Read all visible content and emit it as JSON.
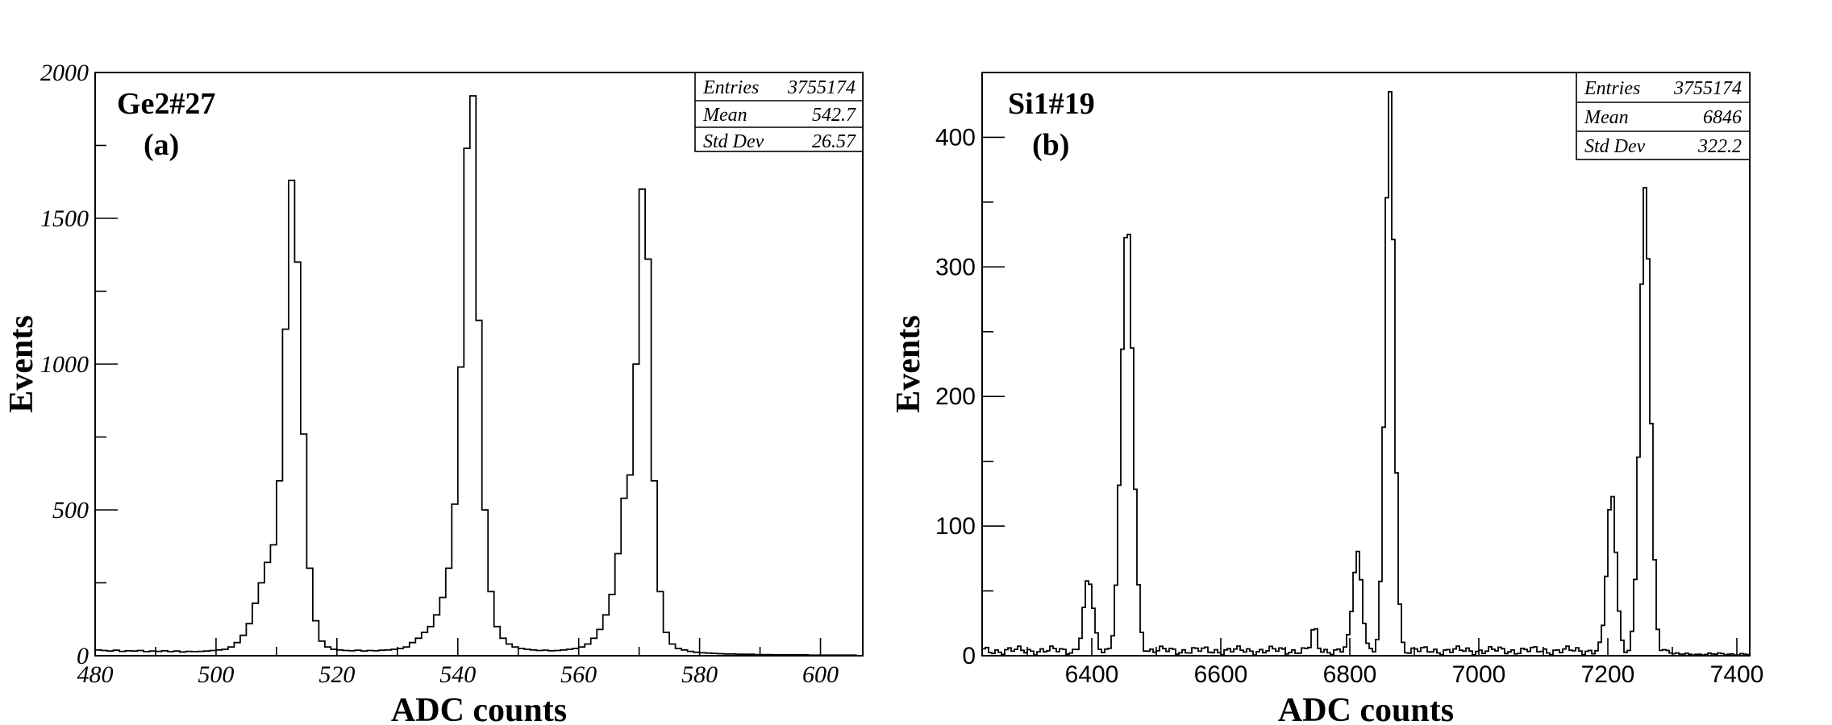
{
  "chart_data": [
    {
      "type": "histogram",
      "panel_title": "Ge2#27",
      "panel_label": "(a)",
      "xlabel": "ADC counts",
      "ylabel": "Events",
      "xlim": [
        480,
        607
      ],
      "ylim": [
        0,
        2000
      ],
      "xticks": [
        480,
        500,
        520,
        540,
        560,
        580,
        600
      ],
      "xtick_labels": [
        "480",
        "500",
        "520",
        "540",
        "560",
        "580",
        "600"
      ],
      "yticks": [
        0,
        500,
        1000,
        1500,
        2000
      ],
      "ytick_labels": [
        "0",
        "500",
        "1000",
        "1500",
        "2000"
      ],
      "stats": [
        {
          "label": "Entries",
          "value": "3755174"
        },
        {
          "label": "Mean",
          "value": "542.7"
        },
        {
          "label": "Std Dev",
          "value": "26.57"
        }
      ],
      "bin_edges": [
        480,
        607
      ],
      "bin_width": 1,
      "counts": [
        20,
        18,
        16,
        19,
        15,
        17,
        16,
        18,
        14,
        16,
        15,
        17,
        14,
        16,
        13,
        15,
        14,
        15,
        16,
        18,
        20,
        22,
        30,
        45,
        70,
        110,
        180,
        250,
        320,
        380,
        600,
        1120,
        1630,
        1350,
        760,
        300,
        120,
        50,
        30,
        22,
        20,
        18,
        17,
        19,
        16,
        18,
        17,
        19,
        20,
        22,
        25,
        30,
        45,
        60,
        80,
        100,
        140,
        200,
        300,
        520,
        990,
        1740,
        1920,
        1150,
        500,
        220,
        100,
        60,
        40,
        30,
        25,
        22,
        20,
        18,
        19,
        17,
        18,
        20,
        22,
        25,
        30,
        40,
        60,
        90,
        140,
        210,
        350,
        540,
        620,
        1000,
        1600,
        1360,
        600,
        220,
        80,
        40,
        25,
        20,
        15,
        12,
        10,
        9,
        8,
        7,
        6,
        6,
        5,
        5,
        5,
        4,
        4,
        4,
        3,
        3,
        3,
        3,
        3,
        3,
        2,
        2,
        2,
        2,
        2,
        2,
        2,
        2
      ]
    },
    {
      "type": "histogram",
      "panel_title": "Si1#19",
      "panel_label": "(b)",
      "xlabel": "ADC counts",
      "ylabel": "Events",
      "xlim": [
        6230,
        7420
      ],
      "ylim": [
        0,
        450
      ],
      "xticks": [
        6400,
        6600,
        6800,
        7000,
        7200,
        7400
      ],
      "xtick_labels": [
        "6400",
        "6600",
        "6800",
        "7000",
        "7200",
        "7400"
      ],
      "yticks": [
        0,
        100,
        200,
        300,
        400
      ],
      "ytick_labels": [
        "0",
        "100",
        "200",
        "300",
        "400"
      ],
      "stats": [
        {
          "label": "Entries",
          "value": "3755174"
        },
        {
          "label": "Mean",
          "value": "6846"
        },
        {
          "label": "Std Dev",
          "value": "322.2"
        }
      ],
      "peaks": [
        {
          "center": 6395,
          "sigma": 7,
          "height": 55
        },
        {
          "center": 6455,
          "sigma": 9,
          "height": 330
        },
        {
          "center": 6745,
          "sigma": 4,
          "height": 17
        },
        {
          "center": 6812,
          "sigma": 7,
          "height": 75
        },
        {
          "center": 6862,
          "sigma": 7,
          "height": 430
        },
        {
          "center": 7206,
          "sigma": 7,
          "height": 120
        },
        {
          "center": 7258,
          "sigma": 8,
          "height": 355
        }
      ],
      "baseline": 4
    }
  ]
}
